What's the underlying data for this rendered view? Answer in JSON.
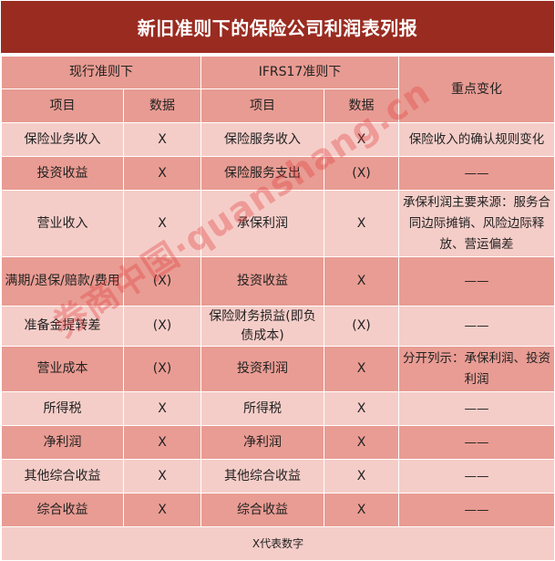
{
  "title": "新旧准则下的保险公司利润表列报",
  "header": {
    "current_standard": "现行准则下",
    "ifrs17_standard": "IFRS17准则下",
    "key_changes": "重点变化",
    "item": "项目",
    "data": "数据"
  },
  "rows": [
    {
      "cur_item": "保险业务收入",
      "cur_data": "X",
      "new_item": "保险服务收入",
      "new_data": "X",
      "change": "保险收入的确认规则变化"
    },
    {
      "cur_item": "投资收益",
      "cur_data": "X",
      "new_item": "保险服务支出",
      "new_data": "(X)",
      "change": "——"
    },
    {
      "cur_item": "营业收入",
      "cur_data": "X",
      "new_item": "承保利润",
      "new_data": "X",
      "change": "承保利润主要来源：服务合同边际摊销、风险边际释放、营运偏差"
    },
    {
      "cur_item": "满期/退保/赔款/费用",
      "cur_data": "(X)",
      "new_item": "投资收益",
      "new_data": "X",
      "change": "——"
    },
    {
      "cur_item": "准备金提转差",
      "cur_data": "(X)",
      "new_item": "保险财务损益(即负债成本)",
      "new_data": "(X)",
      "change": "——"
    },
    {
      "cur_item": "营业成本",
      "cur_data": "(X)",
      "new_item": "投资利润",
      "new_data": "X",
      "change": "分开列示：承保利润、投资利润"
    },
    {
      "cur_item": "所得税",
      "cur_data": "X",
      "new_item": "所得税",
      "new_data": "X",
      "change": "——"
    },
    {
      "cur_item": "净利润",
      "cur_data": "X",
      "new_item": "净利润",
      "new_data": "X",
      "change": "——"
    },
    {
      "cur_item": "其他综合收益",
      "cur_data": "X",
      "new_item": "其他综合收益",
      "new_data": "X",
      "change": "——"
    },
    {
      "cur_item": "综合收益",
      "cur_data": "X",
      "new_item": "综合收益",
      "new_data": "X",
      "change": "——"
    }
  ],
  "footer": "X代表数字",
  "watermark": "券商中国·quanshang.cn",
  "colors": {
    "title_bg": "#9a2b20",
    "header_bg": "#e89b92",
    "row_light": "#f5cdc8",
    "row_dark": "#e99c93"
  }
}
